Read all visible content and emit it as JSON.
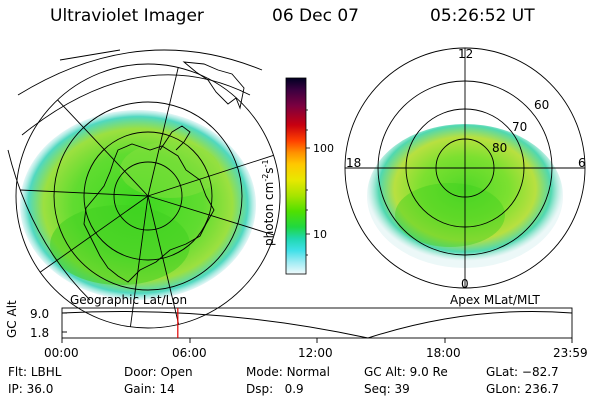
{
  "header": {
    "instrument": "Ultraviolet Imager",
    "date": "06 Dec 07",
    "time": "05:26:52 UT"
  },
  "colorbar": {
    "label_main": "photon cm",
    "label_sup1": "-2",
    "label_mid": "s",
    "label_sup2": "-1",
    "tick_100": "100",
    "tick_10": "10",
    "colors": [
      "#000022",
      "#2a0036",
      "#5a0042",
      "#8a0020",
      "#c00000",
      "#e80020",
      "#ff3a00",
      "#ff7a00",
      "#ffb000",
      "#e8e000",
      "#b8e800",
      "#80e000",
      "#40e000",
      "#20d840",
      "#20d8a0",
      "#40e0e0",
      "#80e8f0",
      "#c0f0f8",
      "#e8f8fc"
    ]
  },
  "left_panel": {
    "caption": "Geographic Lat/Lon"
  },
  "right_panel": {
    "caption": "Apex MLat/MLT",
    "mlt_12": "12",
    "mlt_18": "18",
    "mlt_6": "6",
    "mlt_0": "0",
    "lat_60": "60",
    "lat_70": "70",
    "lat_80": "80"
  },
  "timeline": {
    "ylabel": "GC Alt",
    "y_hi": "9.0",
    "y_lo": "1.8",
    "ticks": [
      "00:00",
      "06:00",
      "12:00",
      "18:00",
      "23:59"
    ],
    "marker_hour": 5.45,
    "trough_hour": 14.4
  },
  "status": {
    "flt_label": "Flt:",
    "flt_value": "LBHL",
    "ip_label": "IP:",
    "ip_value": "36.0",
    "door_label": "Door:",
    "door_value": "Open",
    "gain_label": "Gain:",
    "gain_value": "14",
    "mode_label": "Mode:",
    "mode_value": "Normal",
    "dsp_label": "Dsp:",
    "dsp_value": "0.9",
    "gcalt_label": "GC Alt:",
    "gcalt_value": "9.0 Re",
    "seq_label": "Seq:",
    "seq_value": "39",
    "glat_label": "GLat:",
    "glat_value": "−82.7",
    "glon_label": "GLon:",
    "glon_value": "236.7"
  }
}
